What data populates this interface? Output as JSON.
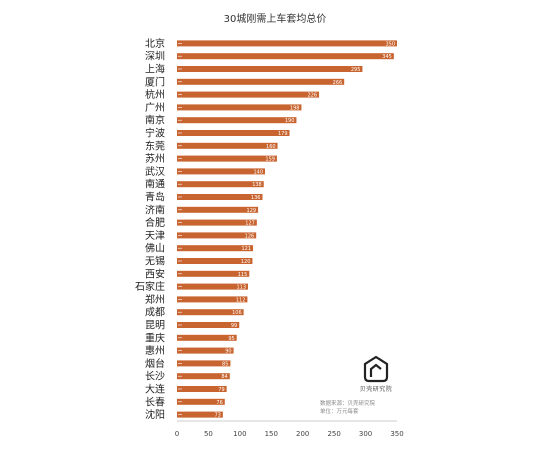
{
  "chart_data": {
    "type": "bar",
    "orientation": "horizontal",
    "title": "30城刚需上车套均总价",
    "categories": [
      "北京",
      "深圳",
      "上海",
      "厦门",
      "杭州",
      "广州",
      "南京",
      "宁波",
      "东莞",
      "苏州",
      "武汉",
      "南通",
      "青岛",
      "济南",
      "合肥",
      "天津",
      "佛山",
      "无锡",
      "西安",
      "石家庄",
      "郑州",
      "成都",
      "昆明",
      "重庆",
      "惠州",
      "烟台",
      "长沙",
      "大连",
      "长春",
      "沈阳"
    ],
    "values": [
      350,
      345,
      295,
      266,
      226,
      198,
      190,
      179,
      160,
      159,
      140,
      138,
      136,
      129,
      127,
      126,
      121,
      120,
      115,
      113,
      112,
      106,
      99,
      95,
      90,
      85,
      84,
      79,
      76,
      73
    ],
    "xlim": [
      0,
      350
    ],
    "xticks": [
      0,
      50,
      100,
      150,
      200,
      250,
      300,
      350
    ],
    "bar_color": "#C8642F",
    "grid": false
  },
  "branding": {
    "logo_text": "贝壳研究院",
    "source_line": "数据来源：贝壳研究院",
    "unit_line": "单位：万元每套"
  }
}
